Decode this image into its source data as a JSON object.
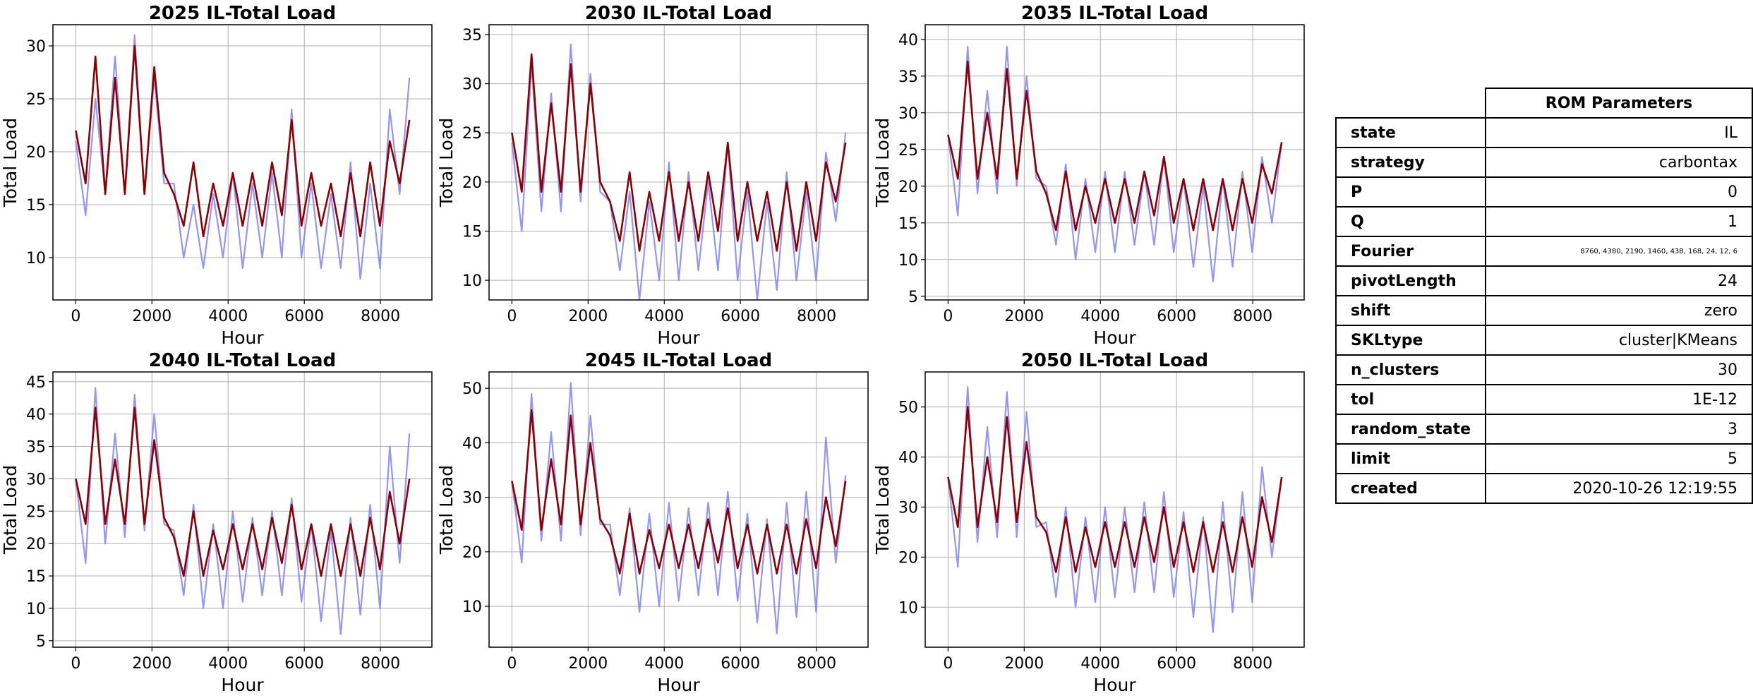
{
  "chart_data": [
    {
      "type": "line",
      "title": "2025 IL-Total Load",
      "xlabel": "Hour",
      "ylabel": "Total Load",
      "xlim": [
        -600,
        9350
      ],
      "ylim": [
        6,
        32
      ],
      "xticks": [
        0,
        2000,
        4000,
        6000,
        8000
      ],
      "yticks": [
        10,
        15,
        20,
        25,
        30
      ],
      "grid": true,
      "series": [
        {
          "color": "#7b7bf5",
          "values": [
            21,
            14,
            25,
            16,
            29,
            16,
            31,
            16,
            27,
            17,
            17,
            10,
            15,
            9,
            16,
            10,
            18,
            9,
            17,
            10,
            18,
            10,
            24,
            10,
            17,
            9,
            16,
            9,
            19,
            8,
            17,
            9,
            24,
            16,
            27
          ]
        },
        {
          "color": "#8b0000",
          "values": [
            22,
            17,
            29,
            16,
            27,
            16,
            30,
            16,
            28,
            18,
            16,
            13,
            19,
            12,
            17,
            13,
            18,
            13,
            18,
            13,
            19,
            14,
            23,
            13,
            18,
            13,
            17,
            12,
            18,
            12,
            19,
            13,
            21,
            17,
            23
          ]
        }
      ]
    },
    {
      "type": "line",
      "title": "2030 IL-Total Load",
      "xlabel": "Hour",
      "ylabel": "Total Load",
      "xlim": [
        -600,
        9350
      ],
      "ylim": [
        8,
        36
      ],
      "xticks": [
        0,
        2000,
        4000,
        6000,
        8000
      ],
      "yticks": [
        10,
        15,
        20,
        25,
        30,
        35
      ],
      "grid": true,
      "series": [
        {
          "color": "#7b7bf5",
          "values": [
            24,
            15,
            32,
            17,
            29,
            17,
            34,
            18,
            31,
            19,
            18,
            11,
            19,
            8,
            18,
            10,
            22,
            10,
            21,
            11,
            20,
            11,
            24,
            10,
            19,
            8,
            18,
            9,
            21,
            10,
            19,
            10,
            23,
            16,
            25
          ]
        },
        {
          "color": "#8b0000",
          "values": [
            25,
            19,
            33,
            19,
            28,
            19,
            32,
            19,
            30,
            20,
            18,
            14,
            21,
            13,
            19,
            14,
            21,
            14,
            20,
            14,
            21,
            15,
            24,
            14,
            20,
            14,
            19,
            13,
            20,
            13,
            20,
            14,
            22,
            18,
            24
          ]
        }
      ]
    },
    {
      "type": "line",
      "title": "2035 IL-Total Load",
      "xlabel": "Hour",
      "ylabel": "Total Load",
      "xlim": [
        -600,
        9350
      ],
      "ylim": [
        4.5,
        42
      ],
      "xticks": [
        0,
        2000,
        4000,
        6000,
        8000
      ],
      "yticks": [
        5,
        10,
        15,
        20,
        25,
        30,
        35,
        40
      ],
      "grid": true,
      "series": [
        {
          "color": "#7b7bf5",
          "values": [
            27,
            16,
            39,
            19,
            33,
            19,
            39,
            20,
            35,
            21,
            20,
            12,
            23,
            10,
            21,
            11,
            22,
            11,
            22,
            12,
            22,
            12,
            24,
            11,
            21,
            9,
            20,
            7,
            21,
            9,
            22,
            11,
            24,
            15,
            26
          ]
        },
        {
          "color": "#8b0000",
          "values": [
            27,
            21,
            37,
            21,
            30,
            21,
            36,
            21,
            33,
            22,
            19,
            14,
            22,
            14,
            20,
            15,
            21,
            15,
            21,
            15,
            22,
            16,
            24,
            15,
            21,
            14,
            21,
            14,
            21,
            14,
            21,
            15,
            23,
            19,
            26
          ]
        }
      ]
    },
    {
      "type": "line",
      "title": "2040 IL-Total Load",
      "xlabel": "Hour",
      "ylabel": "Total Load",
      "xlim": [
        -600,
        9350
      ],
      "ylim": [
        4,
        46.5
      ],
      "xticks": [
        0,
        2000,
        4000,
        6000,
        8000
      ],
      "yticks": [
        5,
        10,
        15,
        20,
        25,
        30,
        35,
        40,
        45
      ],
      "grid": true,
      "series": [
        {
          "color": "#7b7bf5",
          "values": [
            30,
            17,
            44,
            20,
            37,
            21,
            43,
            22,
            40,
            23,
            22,
            12,
            26,
            10,
            23,
            10,
            25,
            11,
            24,
            12,
            25,
            12,
            27,
            11,
            23,
            8,
            22,
            6,
            24,
            9,
            26,
            10,
            35,
            17,
            37
          ]
        },
        {
          "color": "#8b0000",
          "values": [
            30,
            23,
            41,
            23,
            33,
            23,
            41,
            23,
            36,
            24,
            21,
            15,
            25,
            15,
            22,
            16,
            23,
            16,
            23,
            16,
            24,
            17,
            26,
            16,
            23,
            15,
            23,
            15,
            23,
            15,
            24,
            16,
            28,
            20,
            30
          ]
        }
      ]
    },
    {
      "type": "line",
      "title": "2045 IL-Total Load",
      "xlabel": "Hour",
      "ylabel": "Total Load",
      "xlim": [
        -600,
        9350
      ],
      "ylim": [
        2.5,
        53
      ],
      "xticks": [
        0,
        2000,
        4000,
        6000,
        8000
      ],
      "yticks": [
        10,
        20,
        30,
        40,
        50
      ],
      "grid": true,
      "series": [
        {
          "color": "#7b7bf5",
          "values": [
            33,
            18,
            49,
            22,
            42,
            22,
            51,
            23,
            45,
            25,
            25,
            12,
            28,
            9,
            27,
            10,
            29,
            11,
            28,
            12,
            29,
            12,
            31,
            11,
            27,
            7,
            26,
            5,
            29,
            8,
            31,
            9,
            41,
            18,
            34
          ]
        },
        {
          "color": "#8b0000",
          "values": [
            33,
            24,
            46,
            24,
            37,
            25,
            45,
            25,
            40,
            26,
            23,
            16,
            27,
            16,
            24,
            17,
            25,
            17,
            25,
            17,
            26,
            18,
            28,
            17,
            25,
            16,
            25,
            16,
            25,
            16,
            26,
            17,
            30,
            21,
            33
          ]
        }
      ]
    },
    {
      "type": "line",
      "title": "2050 IL-Total Load",
      "xlabel": "Hour",
      "ylabel": "Total Load",
      "xlim": [
        -600,
        9350
      ],
      "ylim": [
        2,
        57
      ],
      "xticks": [
        0,
        2000,
        4000,
        6000,
        8000
      ],
      "yticks": [
        10,
        20,
        30,
        40,
        50
      ],
      "grid": true,
      "series": [
        {
          "color": "#7b7bf5",
          "values": [
            36,
            18,
            54,
            23,
            46,
            24,
            53,
            24,
            49,
            26,
            27,
            12,
            30,
            10,
            28,
            11,
            30,
            12,
            30,
            13,
            31,
            13,
            33,
            12,
            29,
            8,
            28,
            5,
            31,
            9,
            33,
            11,
            38,
            20,
            36
          ]
        },
        {
          "color": "#8b0000",
          "values": [
            36,
            26,
            50,
            26,
            40,
            27,
            48,
            27,
            43,
            28,
            25,
            17,
            28,
            17,
            26,
            18,
            27,
            18,
            27,
            18,
            28,
            19,
            30,
            18,
            27,
            17,
            27,
            17,
            27,
            17,
            28,
            18,
            32,
            23,
            36
          ]
        }
      ]
    }
  ],
  "rom_table": {
    "header": "ROM Parameters",
    "rows": [
      {
        "name": "state",
        "value": "IL"
      },
      {
        "name": "strategy",
        "value": "carbontax"
      },
      {
        "name": "P",
        "value": "0"
      },
      {
        "name": "Q",
        "value": "1"
      },
      {
        "name": "Fourier",
        "value": "8760, 4380, 2190, 1460, 438, 168, 24, 12, 6"
      },
      {
        "name": "pivotLength",
        "value": "24"
      },
      {
        "name": "shift",
        "value": "zero"
      },
      {
        "name": "SKLtype",
        "value": "cluster|KMeans"
      },
      {
        "name": "n_clusters",
        "value": "30"
      },
      {
        "name": "tol",
        "value": "1E-12"
      },
      {
        "name": "random_state",
        "value": "3"
      },
      {
        "name": "limit",
        "value": "5"
      },
      {
        "name": "created",
        "value": "2020-10-26 12:19:55"
      }
    ]
  }
}
